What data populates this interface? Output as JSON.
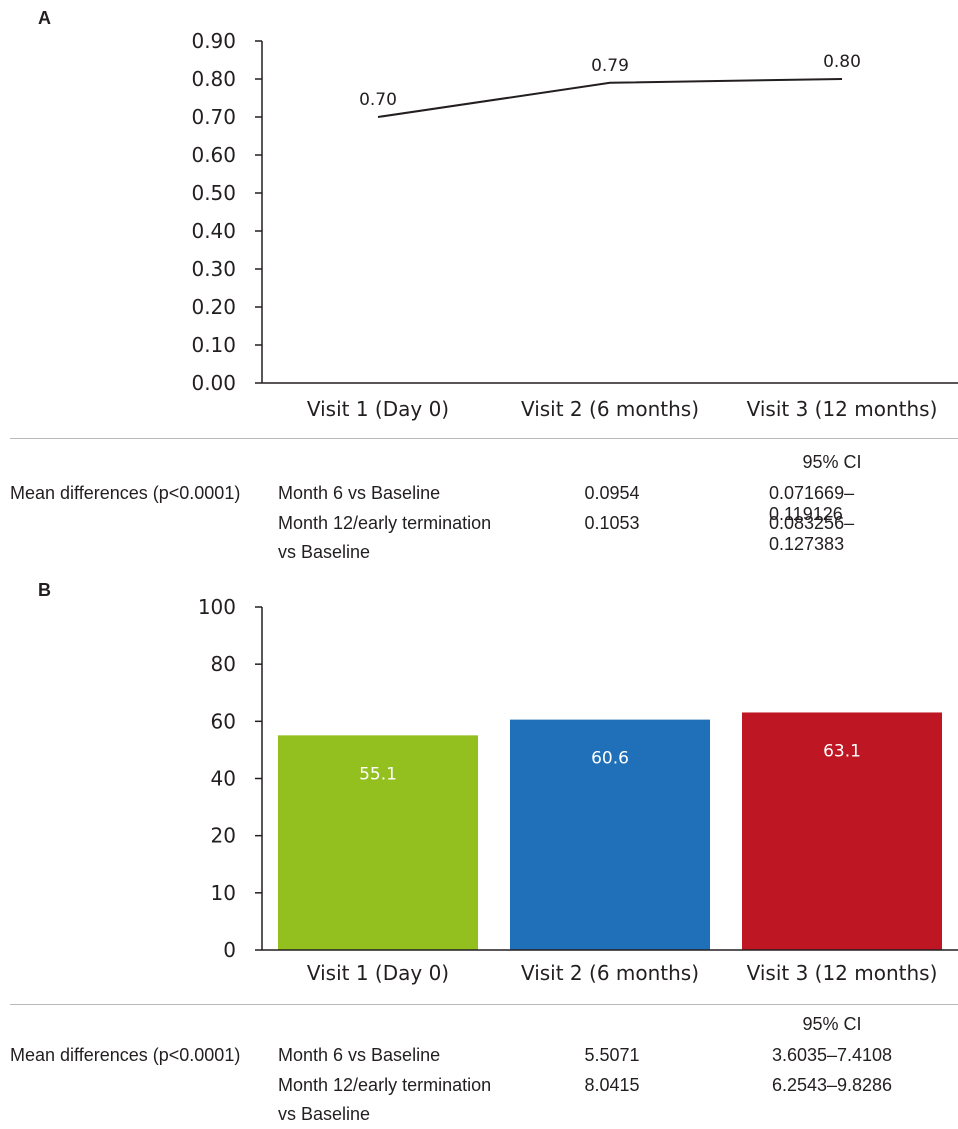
{
  "chart_data": [
    {
      "panel": "A",
      "type": "line",
      "categories": [
        "Visit 1 (Day 0)",
        "Visit 2 (6 months)",
        "Visit 3 (12 months)"
      ],
      "values": [
        0.7,
        0.79,
        0.8
      ],
      "data_labels": [
        "0.70",
        "0.79",
        "0.80"
      ],
      "yticks": [
        "0.00",
        "0.10",
        "0.20",
        "0.30",
        "0.40",
        "0.50",
        "0.60",
        "0.70",
        "0.80",
        "0.90"
      ],
      "ylim": [
        0,
        0.9
      ],
      "line_color": "#231f20",
      "grid": false,
      "legend": "none"
    },
    {
      "panel": "B",
      "type": "bar",
      "categories": [
        "Visit 1 (Day 0)",
        "Visit 2 (6 months)",
        "Visit 3 (12 months)"
      ],
      "values": [
        55.1,
        60.6,
        63.1
      ],
      "data_labels": [
        "55.1",
        "60.6",
        "63.1"
      ],
      "colors": [
        "#93c01f",
        "#1f70b8",
        "#be1622"
      ],
      "yticks": [
        "0",
        "10",
        "20",
        "40",
        "60",
        "80",
        "100"
      ],
      "ylim": [
        0,
        100
      ],
      "grid": false,
      "legend": "none"
    }
  ],
  "table_a": {
    "ci_header": "95% CI",
    "row_label": "Mean differences (p<0.0001)",
    "rows": [
      {
        "comparison": "Month 6 vs Baseline",
        "comparison_cont": "",
        "value": "0.0954",
        "ci": "0.071669–0.119126"
      },
      {
        "comparison": "Month 12/early termination",
        "comparison_cont": "vs Baseline",
        "value": "0.1053",
        "ci": "0.083256–0.127383"
      }
    ]
  },
  "table_b": {
    "ci_header": "95% CI",
    "row_label": "Mean differences (p<0.0001)",
    "rows": [
      {
        "comparison": "Month 6 vs Baseline",
        "comparison_cont": "",
        "value": "5.5071",
        "ci": "3.6035–7.4108"
      },
      {
        "comparison": "Month 12/early termination",
        "comparison_cont": "vs Baseline",
        "value": "8.0415",
        "ci": "6.2543–9.8286"
      }
    ]
  }
}
